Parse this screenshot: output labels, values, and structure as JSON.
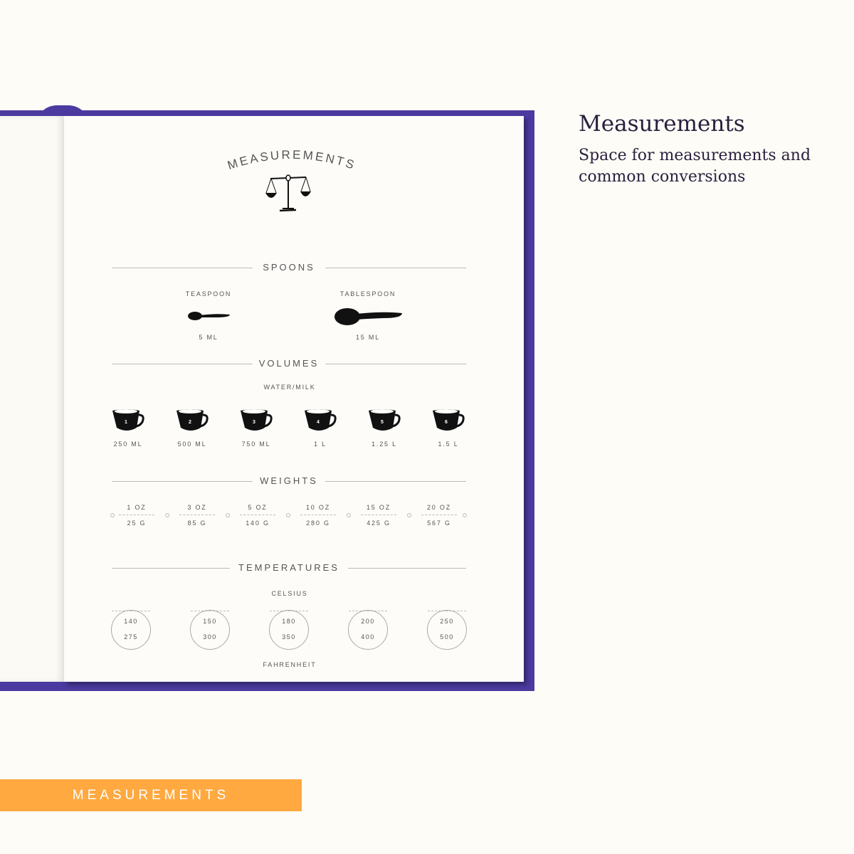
{
  "page_title": "MEASUREMENTS",
  "side": {
    "title": "Measurements",
    "subtitle": "Space for measurements and common conversions"
  },
  "banner": "MEASUREMENTS",
  "colors": {
    "cover": "#4b3aa0",
    "banner": "#ffa940",
    "background": "#fdfcf7"
  },
  "spoons": {
    "title": "SPOONS",
    "items": [
      {
        "label": "TEASPOON",
        "value": "5 ML"
      },
      {
        "label": "TABLESPOON",
        "value": "15 ML"
      }
    ]
  },
  "volumes": {
    "title": "VOLUMES",
    "subtitle": "WATER/MILK",
    "cups": [
      {
        "n": "1",
        "value": "250 ML"
      },
      {
        "n": "2",
        "value": "500 ML"
      },
      {
        "n": "3",
        "value": "750 ML"
      },
      {
        "n": "4",
        "value": "1 L"
      },
      {
        "n": "5",
        "value": "1.25 L"
      },
      {
        "n": "6",
        "value": "1.5 L"
      }
    ]
  },
  "weights": {
    "title": "WEIGHTS",
    "items": [
      {
        "oz": "1 OZ",
        "g": "25 G"
      },
      {
        "oz": "3 OZ",
        "g": "85 G"
      },
      {
        "oz": "5 OZ",
        "g": "140 G"
      },
      {
        "oz": "10 OZ",
        "g": "280 G"
      },
      {
        "oz": "15 OZ",
        "g": "425 G"
      },
      {
        "oz": "20 OZ",
        "g": "567 G"
      }
    ]
  },
  "temperatures": {
    "title": "TEMPERATURES",
    "top_label": "CELSIUS",
    "bottom_label": "FAHRENHEIT",
    "items": [
      {
        "c": "140",
        "f": "275"
      },
      {
        "c": "150",
        "f": "300"
      },
      {
        "c": "180",
        "f": "350"
      },
      {
        "c": "200",
        "f": "400"
      },
      {
        "c": "250",
        "f": "500"
      }
    ]
  }
}
